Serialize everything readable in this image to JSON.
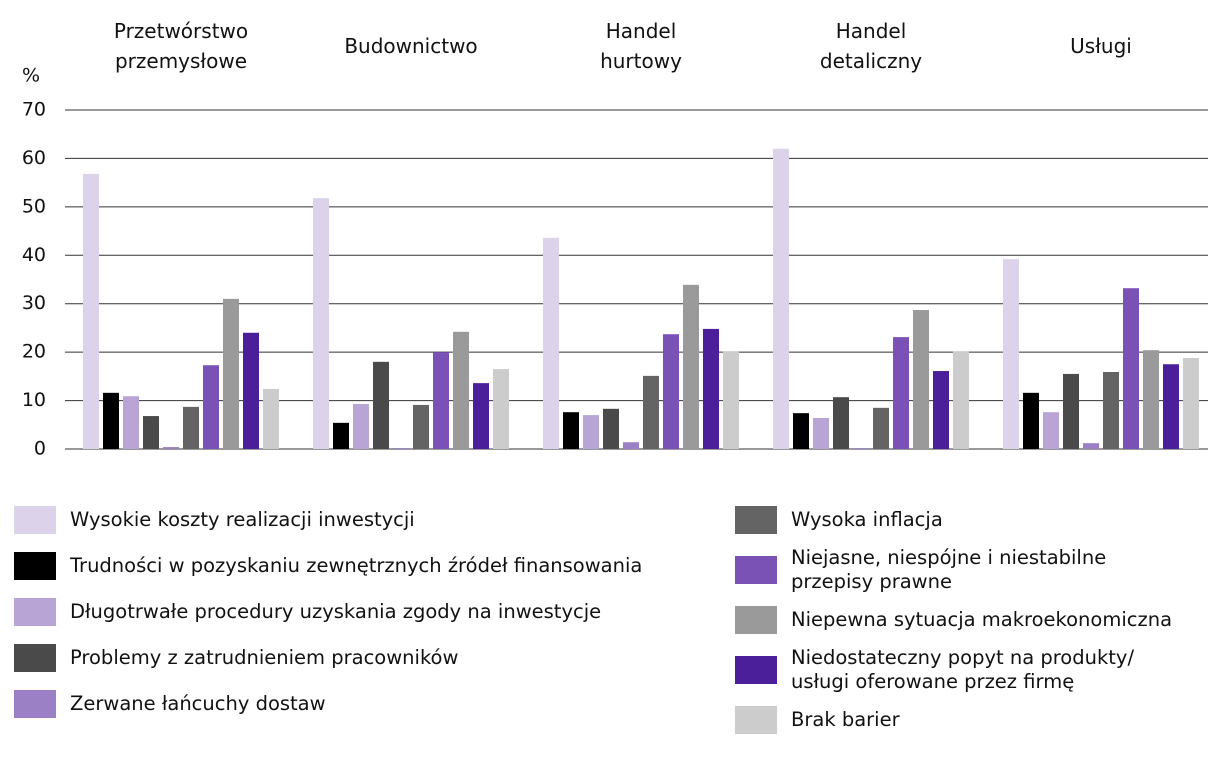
{
  "chart_data": {
    "type": "bar",
    "ylabel": "%",
    "categories": [
      "Przetwórstwo przemysłowe",
      "Budownictwo",
      "Handel hurtowy",
      "Handel detaliczny",
      "Usługi"
    ],
    "ylim": [
      0,
      70
    ],
    "yticks": [
      0,
      10,
      20,
      30,
      40,
      50,
      60,
      70
    ],
    "grid": true,
    "series": [
      {
        "name": "Wysokie koszty realizacji inwestycji",
        "color": "#dcd3ea",
        "values": [
          56.8,
          51.8,
          43.6,
          62.0,
          39.2
        ]
      },
      {
        "name": "Trudności w pozyskaniu zewnętrznych źródeł finansowania",
        "color": "#000000",
        "values": [
          11.6,
          5.4,
          7.6,
          7.4,
          11.6
        ]
      },
      {
        "name": "Długotrwałe procedury uzyskania zgody na inwestycje",
        "color": "#b9a4d6",
        "values": [
          10.9,
          9.3,
          7.0,
          6.4,
          7.6
        ]
      },
      {
        "name": "Problemy z zatrudnieniem pracowników",
        "color": "#4a4a4a",
        "values": [
          6.8,
          18.0,
          8.3,
          10.7,
          15.5
        ]
      },
      {
        "name": "Zerwane łańcuchy dostaw",
        "color": "#9c80c6",
        "values": [
          0.4,
          0.2,
          1.4,
          0.2,
          1.2
        ]
      },
      {
        "name": "Wysoka inflacja",
        "color": "#646464",
        "values": [
          8.7,
          9.1,
          15.1,
          8.5,
          15.9
        ]
      },
      {
        "name": "Niejasne, niespójne i niestabilne\nprzepisy prawne",
        "color": "#7a52b5",
        "values": [
          17.3,
          20.0,
          23.7,
          23.1,
          33.2
        ]
      },
      {
        "name": "Niepewna sytuacja makroekonomiczna",
        "color": "#9a9a9a",
        "values": [
          31.0,
          24.2,
          33.9,
          28.7,
          20.4
        ]
      },
      {
        "name": "Niedostateczny popyt na produkty/\nusługi oferowane przez firmę",
        "color": "#4c1f9a",
        "values": [
          24.0,
          13.6,
          24.8,
          16.1,
          17.5
        ]
      },
      {
        "name": "Brak barier",
        "color": "#cccccc",
        "values": [
          12.4,
          16.5,
          20.2,
          20.2,
          18.8
        ]
      }
    ]
  }
}
